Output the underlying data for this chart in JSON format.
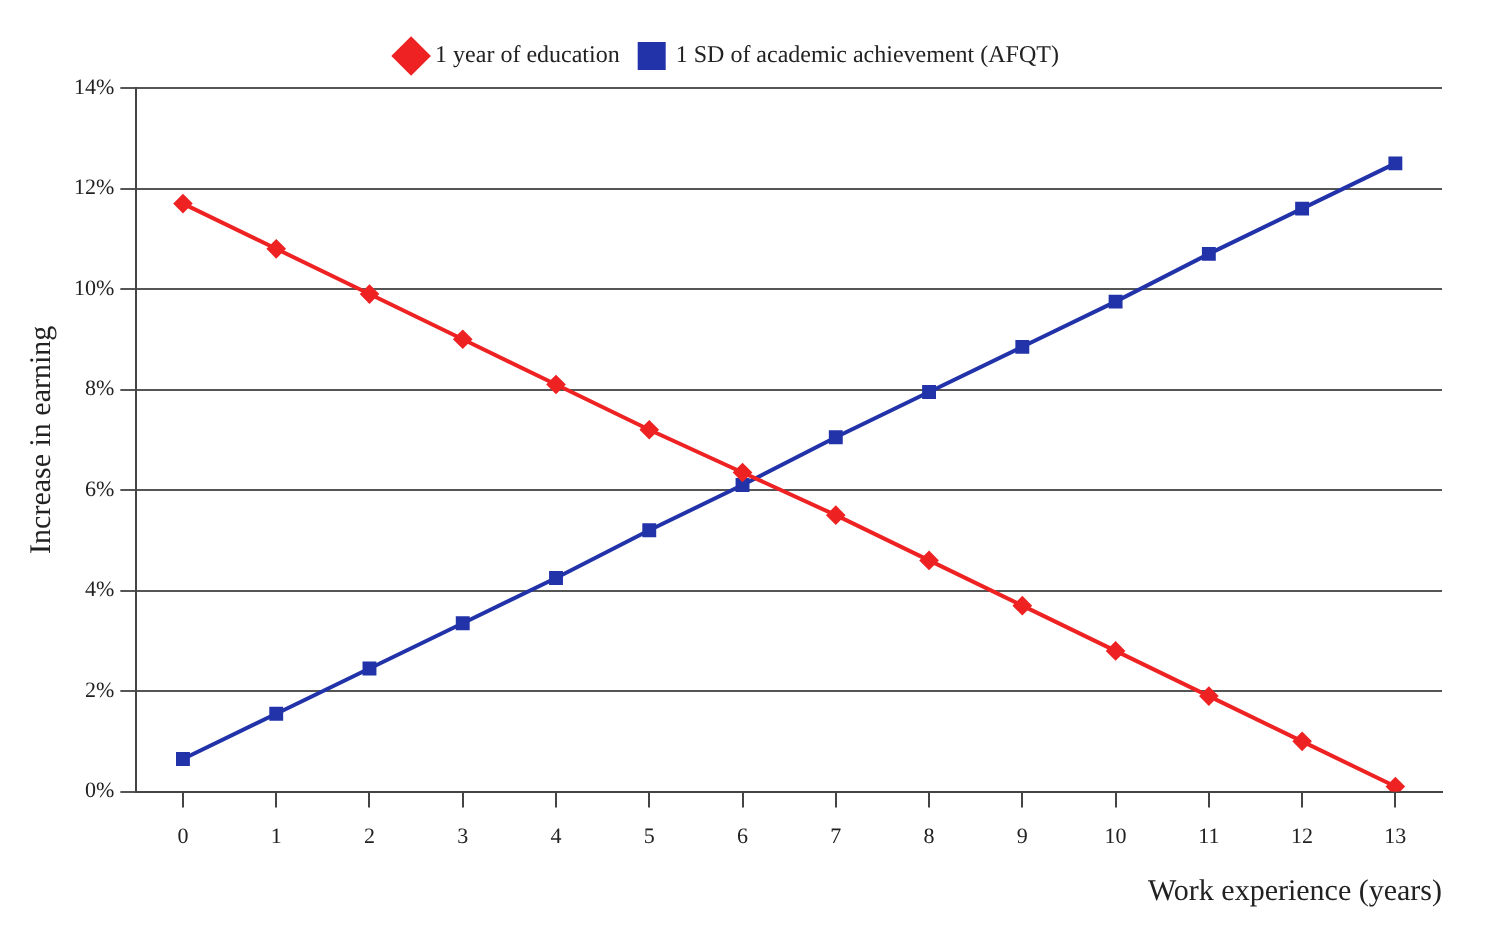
{
  "chart_data": {
    "type": "line",
    "xlabel": "Work experience (years)",
    "ylabel": "Increase in earning",
    "x": [
      0,
      1,
      2,
      3,
      4,
      5,
      6,
      7,
      8,
      9,
      10,
      11,
      12,
      13
    ],
    "xlim": [
      -0.5,
      13.5
    ],
    "xticks": [
      0,
      1,
      2,
      3,
      4,
      5,
      6,
      7,
      8,
      9,
      10,
      11,
      12,
      13
    ],
    "series": [
      {
        "name": "1 year of education",
        "color": "#ee2222",
        "marker": "diamond",
        "values": [
          11.7,
          10.8,
          9.9,
          9.0,
          8.1,
          7.2,
          6.35,
          5.5,
          4.6,
          3.7,
          2.8,
          1.9,
          1.0,
          0.1
        ]
      },
      {
        "name": "1 SD of academic achievement (AFQT)",
        "color": "#2233aa",
        "marker": "square",
        "values": [
          0.65,
          1.55,
          2.45,
          3.35,
          4.25,
          5.2,
          6.1,
          7.05,
          7.95,
          8.85,
          9.75,
          10.7,
          11.6,
          12.5
        ]
      }
    ],
    "ylim": [
      0,
      14
    ],
    "yticks": [
      {
        "value": 0,
        "label": "0%"
      },
      {
        "value": 2,
        "label": "2%"
      },
      {
        "value": 4,
        "label": "4%"
      },
      {
        "value": 6,
        "label": "6%"
      },
      {
        "value": 8,
        "label": "8%"
      },
      {
        "value": 10,
        "label": "10%"
      },
      {
        "value": 12,
        "label": "12%"
      },
      {
        "value": 14,
        "label": "14%"
      }
    ],
    "grid": "y",
    "legend": "top",
    "line_style": "solid"
  }
}
